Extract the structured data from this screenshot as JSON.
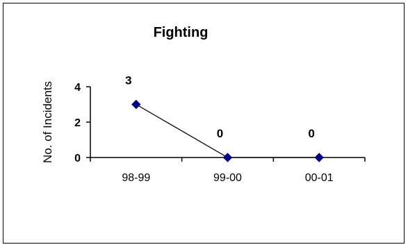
{
  "chart_data": {
    "type": "line",
    "title": "Fighting",
    "xlabel": "",
    "ylabel": "No. of Incidents",
    "categories": [
      "98-99",
      "99-00",
      "00-01"
    ],
    "series": [
      {
        "values": [
          3,
          0,
          0
        ],
        "data_labels": [
          "3",
          "0",
          "0"
        ]
      }
    ],
    "yticks": [
      0,
      2,
      4
    ],
    "ylim": [
      0,
      4
    ],
    "grid": false,
    "legend": "none",
    "colors": {
      "line": "#000000",
      "marker": "#00008B",
      "axis": "#000000"
    }
  }
}
